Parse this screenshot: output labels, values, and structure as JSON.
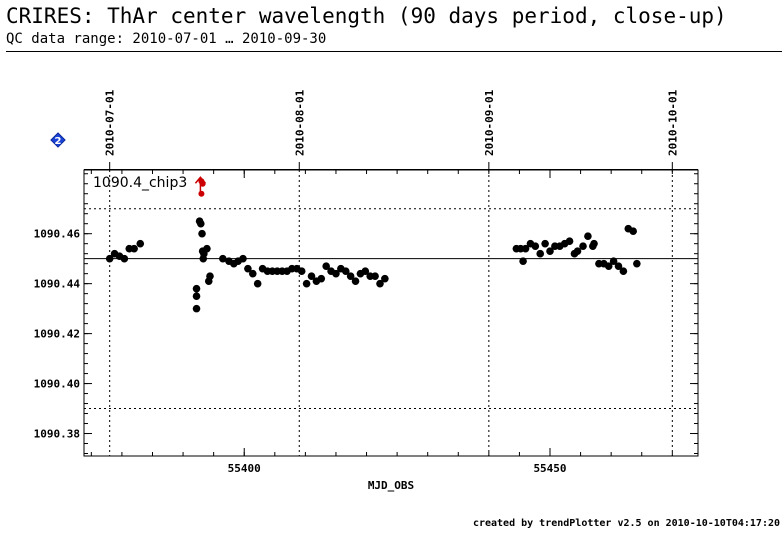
{
  "header": {
    "title": "CRIRES: ThAr center wavelength (90 days period, close-up)",
    "subtitle": "QC data range: 2010-07-01 … 2010-09-30"
  },
  "footer": {
    "credit": "created by trendPlotter v2.5 on 2010-10-10T04:17:20"
  },
  "badge": {
    "label": "2",
    "color": "#1a44d6"
  },
  "chart_data": {
    "type": "scatter",
    "panel_label": "1090.4_chip3",
    "xlabel": "MJD_OBS",
    "ylabel": "",
    "xlim": [
      55373.8,
      55474.2
    ],
    "ylim": [
      1090.371,
      1090.4855
    ],
    "x_ticks": [
      55400,
      55450
    ],
    "y_ticks": [
      1090.38,
      1090.4,
      1090.42,
      1090.44,
      1090.46
    ],
    "y_tick_labels": [
      "1090.38",
      "1090.40",
      "1090.42",
      "1090.44",
      "1090.46"
    ],
    "date_ticks": [
      {
        "label": "2010-07-01",
        "x": 55378
      },
      {
        "label": "2010-08-01",
        "x": 55409
      },
      {
        "label": "2010-09-01",
        "x": 55440
      },
      {
        "label": "2010-10-01",
        "x": 55470
      }
    ],
    "reference_line": 1090.45,
    "threshold_lines": [
      1090.47,
      1090.39
    ],
    "marker_color": "#000000",
    "outlier_color": "#cc0000",
    "points": [
      [
        55378.0,
        1090.45
      ],
      [
        55378.8,
        1090.452
      ],
      [
        55379.6,
        1090.451
      ],
      [
        55380.4,
        1090.45
      ],
      [
        55381.2,
        1090.454
      ],
      [
        55382.0,
        1090.454
      ],
      [
        55383.0,
        1090.456
      ],
      [
        55392.2,
        1090.438
      ],
      [
        55392.2,
        1090.435
      ],
      [
        55392.2,
        1090.43
      ],
      [
        55392.7,
        1090.465
      ],
      [
        55392.9,
        1090.464
      ],
      [
        55393.1,
        1090.46
      ],
      [
        55393.2,
        1090.453
      ],
      [
        55393.3,
        1090.45
      ],
      [
        55393.4,
        1090.452
      ],
      [
        55393.9,
        1090.454
      ],
      [
        55394.2,
        1090.441
      ],
      [
        55394.4,
        1090.443
      ],
      [
        55396.5,
        1090.45
      ],
      [
        55397.5,
        1090.449
      ],
      [
        55398.3,
        1090.448
      ],
      [
        55399.0,
        1090.449
      ],
      [
        55399.8,
        1090.45
      ],
      [
        55400.6,
        1090.446
      ],
      [
        55401.4,
        1090.444
      ],
      [
        55402.2,
        1090.44
      ],
      [
        55403.0,
        1090.446
      ],
      [
        55403.8,
        1090.445
      ],
      [
        55404.6,
        1090.445
      ],
      [
        55405.4,
        1090.445
      ],
      [
        55406.2,
        1090.445
      ],
      [
        55407.0,
        1090.445
      ],
      [
        55407.8,
        1090.446
      ],
      [
        55408.6,
        1090.446
      ],
      [
        55409.4,
        1090.445
      ],
      [
        55410.2,
        1090.44
      ],
      [
        55411.0,
        1090.443
      ],
      [
        55411.8,
        1090.441
      ],
      [
        55412.6,
        1090.442
      ],
      [
        55413.4,
        1090.447
      ],
      [
        55414.2,
        1090.445
      ],
      [
        55415.0,
        1090.444
      ],
      [
        55415.8,
        1090.446
      ],
      [
        55416.6,
        1090.445
      ],
      [
        55417.4,
        1090.443
      ],
      [
        55418.2,
        1090.441
      ],
      [
        55419.0,
        1090.444
      ],
      [
        55419.8,
        1090.445
      ],
      [
        55420.6,
        1090.443
      ],
      [
        55421.4,
        1090.443
      ],
      [
        55422.2,
        1090.44
      ],
      [
        55423.0,
        1090.442
      ],
      [
        55444.5,
        1090.454
      ],
      [
        55445.2,
        1090.454
      ],
      [
        55445.6,
        1090.449
      ],
      [
        55446.0,
        1090.454
      ],
      [
        55446.8,
        1090.456
      ],
      [
        55447.6,
        1090.455
      ],
      [
        55448.4,
        1090.452
      ],
      [
        55449.2,
        1090.456
      ],
      [
        55450.0,
        1090.453
      ],
      [
        55450.8,
        1090.455
      ],
      [
        55451.6,
        1090.455
      ],
      [
        55452.4,
        1090.456
      ],
      [
        55453.2,
        1090.457
      ],
      [
        55454.0,
        1090.452
      ],
      [
        55454.5,
        1090.453
      ],
      [
        55455.4,
        1090.455
      ],
      [
        55456.2,
        1090.459
      ],
      [
        55457.0,
        1090.455
      ],
      [
        55457.2,
        1090.456
      ],
      [
        55458.0,
        1090.448
      ],
      [
        55458.8,
        1090.448
      ],
      [
        55459.6,
        1090.447
      ],
      [
        55460.4,
        1090.449
      ],
      [
        55461.2,
        1090.447
      ],
      [
        55462.0,
        1090.445
      ],
      [
        55462.8,
        1090.462
      ],
      [
        55463.6,
        1090.461
      ],
      [
        55464.2,
        1090.448
      ]
    ],
    "outliers": [
      [
        55393.0,
        1090.481
      ],
      [
        55393.2,
        1090.48
      ],
      [
        55393.0,
        1090.476
      ]
    ]
  }
}
